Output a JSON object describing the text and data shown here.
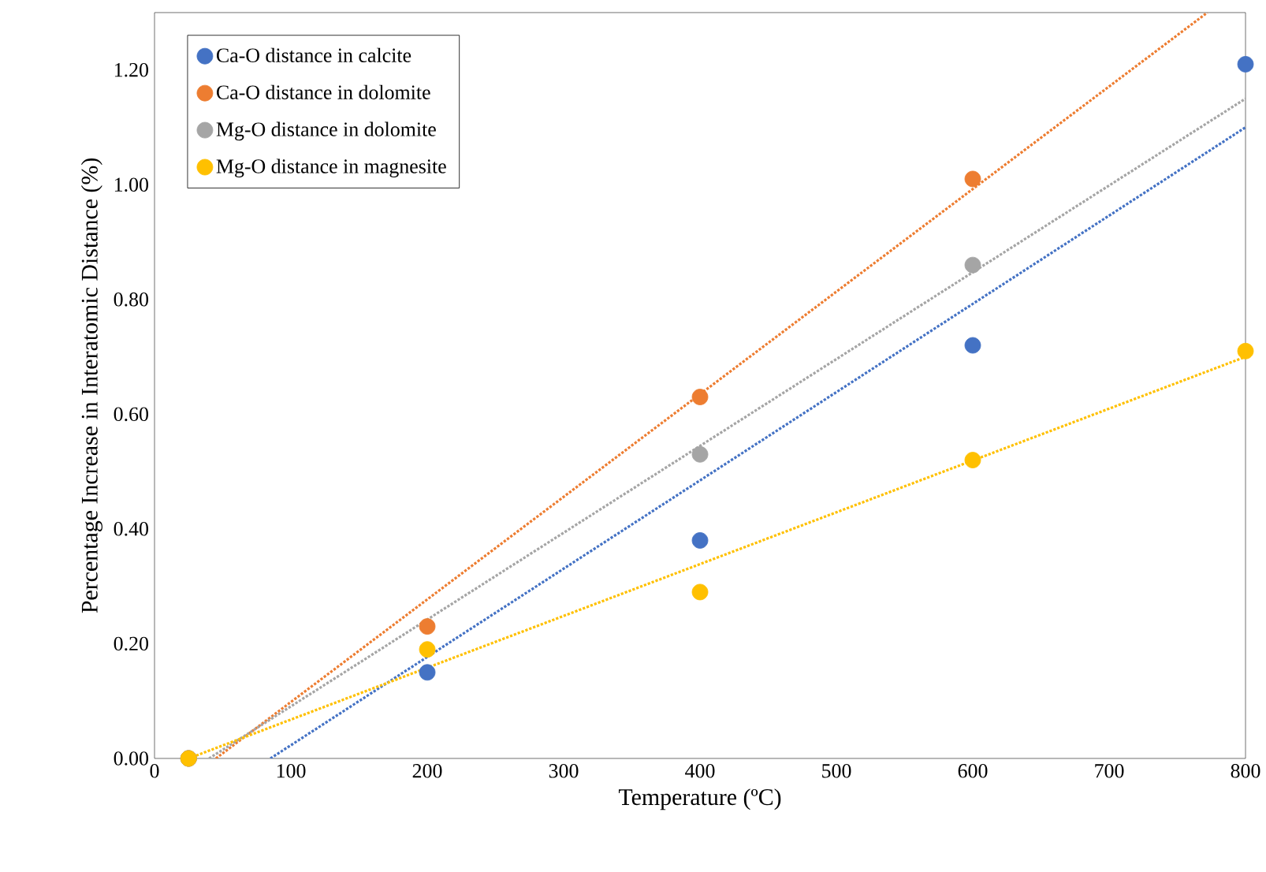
{
  "chart_data": {
    "type": "scatter",
    "xlabel": "Temperature (ºC)",
    "ylabel": "Percentage Increase in Interatomic Distance (%)",
    "xlim": [
      0,
      800
    ],
    "ylim": [
      0,
      1.3
    ],
    "xticks": [
      0,
      100,
      200,
      300,
      400,
      500,
      600,
      700,
      800
    ],
    "yticks": [
      {
        "value": 0,
        "label": "0.00"
      },
      {
        "value": 0.2,
        "label": "0.20"
      },
      {
        "value": 0.4,
        "label": "0.40"
      },
      {
        "value": 0.6,
        "label": "0.60"
      },
      {
        "value": 0.8,
        "label": "0.80"
      },
      {
        "value": 1.0,
        "label": "1.00"
      },
      {
        "value": 1.2,
        "label": "1.20"
      }
    ],
    "grid": false,
    "legend": "top left",
    "marker": "circle",
    "series": [
      {
        "name": "Ca-O distance in calcite",
        "color": "#4472c4",
        "x": [
          25,
          200,
          400,
          600,
          800
        ],
        "values": [
          0,
          0.15,
          0.38,
          0.72,
          1.21
        ]
      },
      {
        "name": "Ca-O distance in dolomite",
        "color": "#ed7d31",
        "x": [
          25,
          200,
          400,
          600
        ],
        "values": [
          0,
          0.23,
          0.63,
          1.01
        ]
      },
      {
        "name": "Mg-O distance in dolomite",
        "color": "#a5a5a5",
        "x": [
          25,
          200,
          400,
          600
        ],
        "values": [
          0,
          null,
          0.53,
          0.86
        ]
      },
      {
        "name": "Mg-O distance in magnesite",
        "color": "#ffc000",
        "x": [
          25,
          200,
          400,
          600,
          800
        ],
        "values": [
          0,
          0.19,
          0.29,
          0.52,
          0.71
        ]
      },
      {
        "type": "line",
        "color": "#4472c4",
        "marker": "none",
        "line_style": "dotted",
        "x": [
          85,
          800
        ],
        "values": [
          0,
          1.1
        ]
      },
      {
        "type": "line",
        "color": "#ed7d31",
        "marker": "none",
        "line_style": "dotted",
        "x": [
          45,
          772
        ],
        "values": [
          0,
          1.3
        ]
      },
      {
        "type": "line",
        "color": "#a5a5a5",
        "marker": "none",
        "line_style": "dotted",
        "x": [
          40,
          800
        ],
        "values": [
          0,
          1.15
        ]
      },
      {
        "type": "line",
        "color": "#ffc000",
        "marker": "none",
        "line_style": "dotted",
        "x": [
          25,
          800
        ],
        "values": [
          0,
          0.7
        ]
      }
    ]
  }
}
